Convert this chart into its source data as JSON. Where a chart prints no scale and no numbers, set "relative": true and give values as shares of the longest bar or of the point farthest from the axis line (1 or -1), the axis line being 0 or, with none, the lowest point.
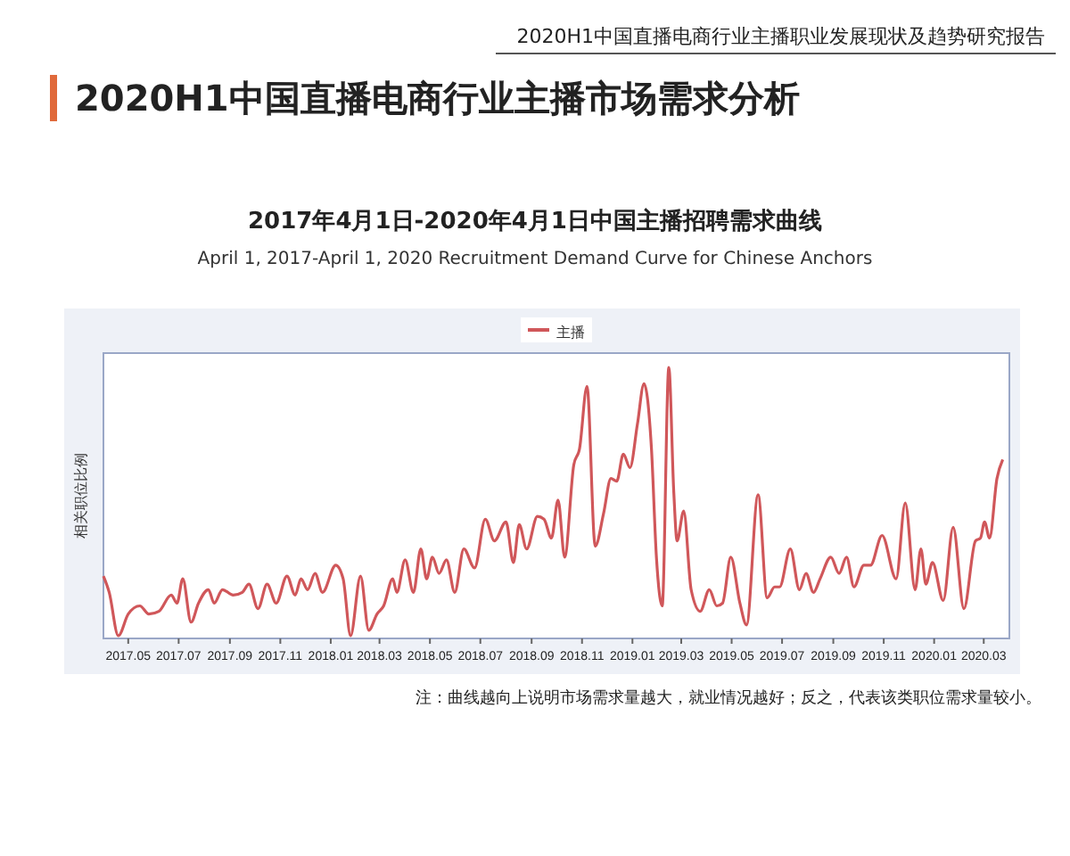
{
  "chart_data": {
    "type": "line",
    "title": "2017年4月1日-2020年4月1日中国主播招聘需求曲线",
    "subtitle": "April 1, 2017-April 1, 2020 Recruitment Demand Curve for Chinese Anchors",
    "ylabel": "相关职位比例",
    "annotations": [
      "2020H1中国直播电商行业主播职业发展现状及趋势研究报告",
      "2020H1中国直播电商行业主播市场需求分析",
      "注：曲线越向上说明市场需求量越大，就业情况越好；反之，代表该类职位需求量较小。"
    ],
    "relative": true,
    "legend": "top",
    "grid": false,
    "xlim": [
      "2017-04-01",
      "2020-04-01"
    ],
    "xticks": [
      {
        "value": "2017-05-01",
        "label": "2017.05"
      },
      {
        "value": "2017-07-01",
        "label": "2017.07"
      },
      {
        "value": "2017-09-01",
        "label": "2017.09"
      },
      {
        "value": "2017-11-01",
        "label": "2017.11"
      },
      {
        "value": "2018-01-01",
        "label": "2018.01"
      },
      {
        "value": "2018-03-01",
        "label": "2018.03"
      },
      {
        "value": "2018-05-01",
        "label": "2018.05"
      },
      {
        "value": "2018-07-01",
        "label": "2018.07"
      },
      {
        "value": "2018-09-01",
        "label": "2018.09"
      },
      {
        "value": "2018-11-01",
        "label": "2018.11"
      },
      {
        "value": "2019-01-01",
        "label": "2019.01"
      },
      {
        "value": "2019-03-01",
        "label": "2019.03"
      },
      {
        "value": "2019-05-01",
        "label": "2019.05"
      },
      {
        "value": "2019-07-01",
        "label": "2019.07"
      },
      {
        "value": "2019-09-01",
        "label": "2019.09"
      },
      {
        "value": "2019-11-01",
        "label": "2019.11"
      },
      {
        "value": "2020-01-01",
        "label": "2020.01"
      },
      {
        "value": "2020-03-01",
        "label": "2020.03"
      }
    ],
    "x": [
      "2017-04-01",
      "2017-04-08",
      "2017-04-19",
      "2017-05-01",
      "2017-05-15",
      "2017-05-26",
      "2017-06-07",
      "2017-06-22",
      "2017-06-29",
      "2017-07-06",
      "2017-07-16",
      "2017-07-25",
      "2017-08-06",
      "2017-08-13",
      "2017-08-23",
      "2017-09-05",
      "2017-09-16",
      "2017-09-24",
      "2017-10-05",
      "2017-10-16",
      "2017-10-27",
      "2017-11-09",
      "2017-11-19",
      "2017-11-26",
      "2017-12-04",
      "2017-12-13",
      "2017-12-22",
      "2018-01-07",
      "2018-01-16",
      "2018-01-25",
      "2018-02-06",
      "2018-02-16",
      "2018-02-26",
      "2018-03-06",
      "2018-03-17",
      "2018-03-22",
      "2018-04-01",
      "2018-04-11",
      "2018-04-20",
      "2018-04-27",
      "2018-05-04",
      "2018-05-12",
      "2018-05-21",
      "2018-05-31",
      "2018-06-11",
      "2018-06-24",
      "2018-07-07",
      "2018-07-18",
      "2018-08-01",
      "2018-08-10",
      "2018-08-17",
      "2018-08-26",
      "2018-09-08",
      "2018-09-16",
      "2018-09-25",
      "2018-10-03",
      "2018-10-11",
      "2018-10-22",
      "2018-10-29",
      "2018-11-07",
      "2018-11-17",
      "2018-11-27",
      "2018-12-06",
      "2018-12-13",
      "2018-12-21",
      "2018-12-29",
      "2019-01-07",
      "2019-01-15",
      "2019-01-24",
      "2019-01-30",
      "2019-02-06",
      "2019-02-14",
      "2019-02-20",
      "2019-02-24",
      "2019-03-04",
      "2019-03-13",
      "2019-03-24",
      "2019-04-04",
      "2019-04-13",
      "2019-04-20",
      "2019-04-30",
      "2019-05-11",
      "2019-05-19",
      "2019-06-02",
      "2019-06-13",
      "2019-06-22",
      "2019-06-28",
      "2019-07-11",
      "2019-07-22",
      "2019-07-30",
      "2019-08-08",
      "2019-08-16",
      "2019-08-29",
      "2019-09-08",
      "2019-09-17",
      "2019-09-26",
      "2019-10-08",
      "2019-10-16",
      "2019-10-30",
      "2019-11-16",
      "2019-11-27",
      "2019-12-09",
      "2019-12-16",
      "2019-12-22",
      "2019-12-30",
      "2020-01-12",
      "2020-01-24",
      "2020-02-06",
      "2020-02-20",
      "2020-02-26",
      "2020-03-02",
      "2020-03-08",
      "2020-03-17",
      "2020-03-24"
    ],
    "series": [
      {
        "name": "主播",
        "color": "#d0575a",
        "values": [
          0.23,
          0.17,
          0.01,
          0.09,
          0.12,
          0.09,
          0.1,
          0.16,
          0.13,
          0.22,
          0.06,
          0.13,
          0.18,
          0.13,
          0.18,
          0.16,
          0.17,
          0.2,
          0.11,
          0.2,
          0.13,
          0.23,
          0.16,
          0.22,
          0.18,
          0.24,
          0.17,
          0.27,
          0.22,
          0.01,
          0.23,
          0.03,
          0.09,
          0.12,
          0.22,
          0.17,
          0.29,
          0.17,
          0.33,
          0.22,
          0.3,
          0.24,
          0.29,
          0.17,
          0.33,
          0.26,
          0.44,
          0.36,
          0.43,
          0.28,
          0.42,
          0.33,
          0.45,
          0.44,
          0.37,
          0.51,
          0.3,
          0.64,
          0.7,
          0.93,
          0.34,
          0.46,
          0.59,
          0.58,
          0.68,
          0.63,
          0.79,
          0.94,
          0.7,
          0.3,
          0.12,
          1.0,
          0.54,
          0.36,
          0.47,
          0.18,
          0.1,
          0.18,
          0.12,
          0.13,
          0.3,
          0.13,
          0.05,
          0.53,
          0.15,
          0.19,
          0.19,
          0.33,
          0.18,
          0.24,
          0.17,
          0.22,
          0.3,
          0.24,
          0.3,
          0.19,
          0.27,
          0.27,
          0.38,
          0.22,
          0.5,
          0.18,
          0.33,
          0.2,
          0.28,
          0.14,
          0.41,
          0.11,
          0.36,
          0.37,
          0.43,
          0.37,
          0.59,
          0.66
        ]
      }
    ]
  }
}
